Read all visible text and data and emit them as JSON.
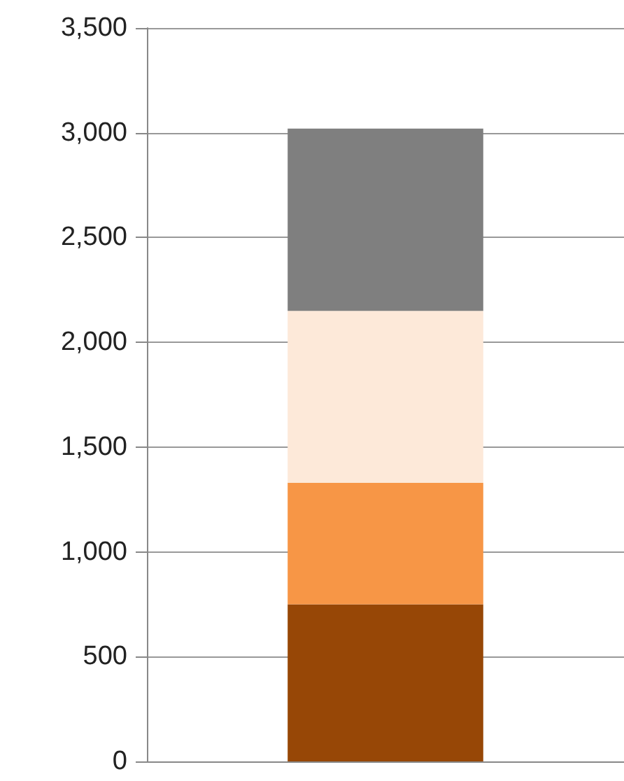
{
  "chart_data": {
    "type": "bar",
    "stacked": true,
    "categories": [
      null
    ],
    "series": [
      {
        "color": "#974706",
        "values": [
          750
        ]
      },
      {
        "color": "#f79646",
        "values": [
          580
        ]
      },
      {
        "color": "#fde9d9",
        "values": [
          820
        ]
      },
      {
        "color": "#7f7f7f",
        "values": [
          870
        ]
      }
    ],
    "ylim": [
      0,
      3500
    ],
    "yticks": [
      0,
      500,
      {
        "value": 1000,
        "label": "1,000"
      },
      {
        "value": 1500,
        "label": "1,500"
      },
      {
        "value": 2000,
        "label": "2,000"
      },
      {
        "value": 2500,
        "label": "2,500"
      },
      {
        "value": 3000,
        "label": "3,000"
      },
      {
        "value": 3500,
        "label": "3,500"
      }
    ],
    "grid": "y"
  }
}
